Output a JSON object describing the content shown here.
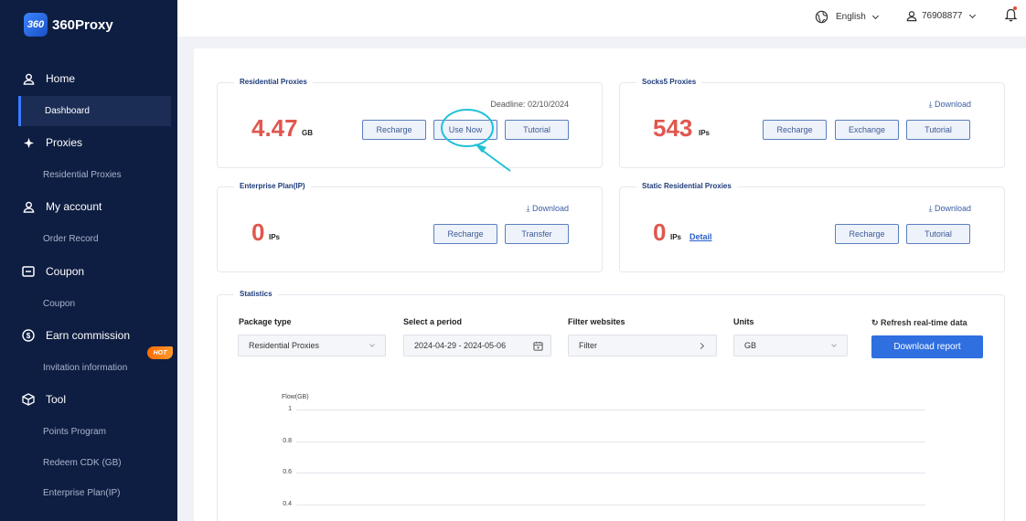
{
  "brand": {
    "logo_mark": "360",
    "name": "360Proxy"
  },
  "sidebar": {
    "groups": [
      {
        "label": "Home",
        "icon": "user-icon",
        "items": [
          "Dashboard"
        ]
      },
      {
        "label": "Proxies",
        "icon": "proxy-icon",
        "items": [
          "Residential Proxies"
        ]
      },
      {
        "label": "My account",
        "icon": "user-icon",
        "items": [
          "Order Record"
        ]
      },
      {
        "label": "Coupon",
        "icon": "coupon-icon",
        "items": [
          "Coupon"
        ]
      },
      {
        "label": "Earn commission",
        "icon": "dollar-icon",
        "items": [
          "Invitation information"
        ],
        "badge": "HOT"
      },
      {
        "label": "Tool",
        "icon": "box-icon",
        "items": [
          "Points Program",
          "Redeem CDK (GB)",
          "Enterprise Plan(IP)"
        ]
      }
    ],
    "active_item": "Dashboard"
  },
  "header": {
    "language": "English",
    "user": "76908877"
  },
  "cards": {
    "residential": {
      "title": "Residential Proxies",
      "deadline": "Deadline: 02/10/2024",
      "value": "4.47",
      "unit": "GB",
      "buttons": [
        "Recharge",
        "Use Now",
        "Tutorial"
      ]
    },
    "socks5": {
      "title": "Socks5 Proxies",
      "download": "Download",
      "value": "543",
      "unit": "IPs",
      "buttons": [
        "Recharge",
        "Exchange",
        "Tutorial"
      ]
    },
    "enterprise": {
      "title": "Enterprise Plan(IP)",
      "download": "Download",
      "value": "0",
      "unit": "IPs",
      "buttons": [
        "Recharge",
        "Transfer"
      ]
    },
    "static": {
      "title": "Static Residential Proxies",
      "download": "Download",
      "value": "0",
      "unit": "IPs",
      "detail": "Detail",
      "buttons": [
        "Recharge",
        "Tutorial"
      ]
    }
  },
  "statistics": {
    "title": "Statistics",
    "package_type": {
      "label": "Package type",
      "value": "Residential Proxies"
    },
    "period": {
      "label": "Select a period",
      "value": "2024-04-29 - 2024-05-06"
    },
    "filter": {
      "label": "Filter websites",
      "value": "Filter"
    },
    "units": {
      "label": "Units",
      "value": "GB"
    },
    "refresh": "Refresh real-time data",
    "download_report": "Download report"
  },
  "chart_data": {
    "type": "line",
    "ylabel": "Flow(GB)",
    "yticks": [
      "1",
      "0.8",
      "0.6",
      "0.4"
    ],
    "series": []
  },
  "colors": {
    "sidebar_bg": "#0e1e42",
    "accent": "#2f6fe0",
    "value_red": "#e0574f",
    "annotation": "#1fc1d8"
  }
}
